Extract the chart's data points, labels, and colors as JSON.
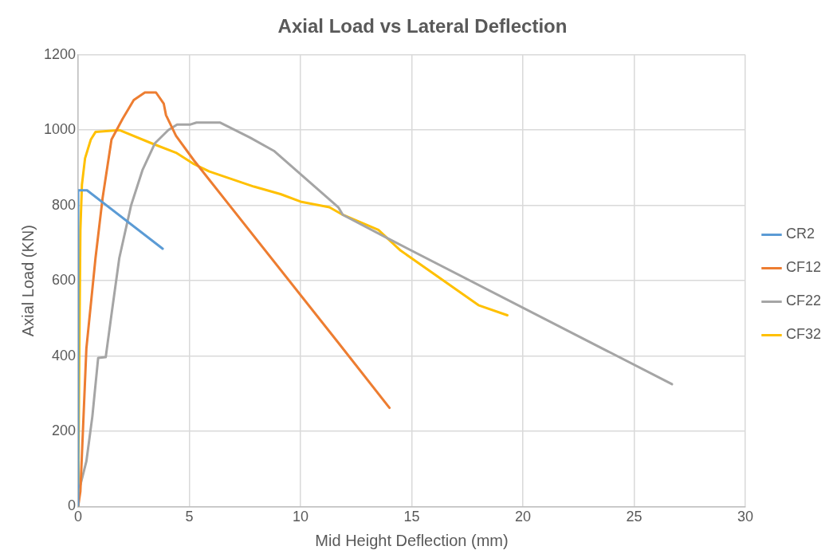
{
  "chart_data": {
    "type": "line",
    "title": "Axial Load vs Lateral Deflection",
    "xlabel": "Mid Height Deflection (mm)",
    "ylabel": "Axial Load (KN)",
    "xlim": [
      0,
      30
    ],
    "xticks": [
      0,
      5,
      10,
      15,
      20,
      25,
      30
    ],
    "ylim": [
      0,
      1200
    ],
    "yticks": [
      0,
      200,
      400,
      600,
      800,
      1000,
      1200
    ],
    "grid": true,
    "legend": "right",
    "marker": "none",
    "line_style": "solid",
    "series": [
      {
        "name": "CR2",
        "color": "#5b9bd5",
        "x": [
          0,
          0,
          0.4,
          3.8
        ],
        "values": [
          0,
          840,
          840,
          685
        ]
      },
      {
        "name": "CF12",
        "color": "#ed7d31",
        "x": [
          0,
          0.1,
          0.37,
          0.78,
          1.1,
          1.5,
          2.0,
          2.5,
          3.0,
          3.5,
          3.85,
          3.95,
          4.4,
          5.2,
          11.7,
          14
        ],
        "values": [
          0,
          40,
          420,
          660,
          820,
          975,
          1030,
          1080,
          1100,
          1100,
          1070,
          1040,
          985,
          920,
          435,
          262
        ]
      },
      {
        "name": "CF22",
        "color": "#a5a5a5",
        "x": [
          0,
          0.1,
          0.37,
          0.64,
          0.9,
          1.24,
          1.51,
          1.85,
          2.38,
          2.9,
          3.45,
          4.05,
          4.45,
          5.05,
          5.32,
          6.39,
          7.73,
          8.8,
          11.7,
          11.9,
          14,
          26.7
        ],
        "values": [
          50,
          57,
          120,
          240,
          395,
          397,
          515,
          660,
          800,
          895,
          965,
          1000,
          1015,
          1015,
          1020,
          1020,
          980,
          945,
          795,
          775,
          710,
          325
        ]
      },
      {
        "name": "CF32",
        "color": "#ffc000",
        "x": [
          0,
          0.05,
          0.1,
          0.17,
          0.31,
          0.57,
          0.78,
          1.85,
          3.3,
          4.4,
          5.2,
          5.9,
          6.9,
          7.9,
          9.1,
          10,
          11.3,
          11.9,
          13.5,
          14.5,
          18,
          19.3
        ],
        "values": [
          0,
          400,
          735,
          855,
          925,
          975,
          995,
          1000,
          965,
          940,
          910,
          890,
          870,
          850,
          830,
          810,
          795,
          775,
          735,
          680,
          535,
          508
        ]
      }
    ]
  }
}
